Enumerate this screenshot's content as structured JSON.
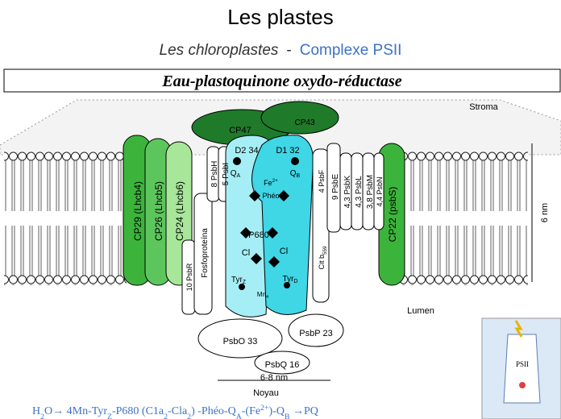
{
  "header": {
    "title": "Les plastes",
    "subtitle": "Les chloroplastes",
    "separator": "-",
    "topic": "Complexe PSII"
  },
  "banner": "Eau-plastoquinone oxydo-réductase",
  "labels": [
    {
      "text": "Stroma"
    },
    {
      "text": "CP47"
    },
    {
      "text": "CP43"
    },
    {
      "text": "D2 34"
    },
    {
      "text": "D1 32"
    },
    {
      "text": "Q",
      "sub": "A"
    },
    {
      "text": "Q",
      "sub": "B"
    },
    {
      "text": "Fe",
      "sup": "2+"
    },
    {
      "text": "Phéo"
    },
    {
      "text": "P680"
    },
    {
      "text": "Cl"
    },
    {
      "text": "Cl"
    },
    {
      "text": "Tyr",
      "sub": "Z"
    },
    {
      "text": "Tyr",
      "sub": "D"
    },
    {
      "text": "Mn",
      "sub": "4"
    },
    {
      "text": "CP29 (Lhcb4)"
    },
    {
      "text": "CP26 (Lhcb5)"
    },
    {
      "text": "CP24 (Lhcb6)"
    },
    {
      "text": "10 PsbR"
    },
    {
      "text": "Fosfoproteína"
    },
    {
      "text": "8 PsbH"
    },
    {
      "text": "5 PsbI"
    },
    {
      "text": "4 PsbF"
    },
    {
      "text": "Cit b",
      "sub": "559"
    },
    {
      "text": "9 PsbE"
    },
    {
      "text": "4,3 PsbK"
    },
    {
      "text": "4,3 PsbL"
    },
    {
      "text": "3,8 PsbM"
    },
    {
      "text": "4,4 PsbN"
    },
    {
      "text": "CP22 (psbS)"
    },
    {
      "text": "6 nm"
    },
    {
      "text": "Lumen"
    },
    {
      "text": "PsbO 33"
    },
    {
      "text": "PsbP 23"
    },
    {
      "text": "PsbQ 16"
    },
    {
      "text": "6-8 nm"
    },
    {
      "text": "Noyau"
    }
  ],
  "formula": [
    {
      "text": "H",
      "sub": "2"
    },
    {
      "text": "O→ 4Mn-Tyr",
      "sub": "Z"
    },
    {
      "text": "-P680 (C1a",
      "sub": "2"
    },
    {
      "text": "-Cla",
      "sub": "2"
    },
    {
      "text": ") -Phéo-Q",
      "sub": "A"
    },
    {
      "text": "-(Fe",
      "sup": "2+"
    },
    {
      "text": ")-Q",
      "sub": "B"
    },
    {
      "text": " →PQ"
    }
  ],
  "inset": {
    "label": "PSII"
  }
}
